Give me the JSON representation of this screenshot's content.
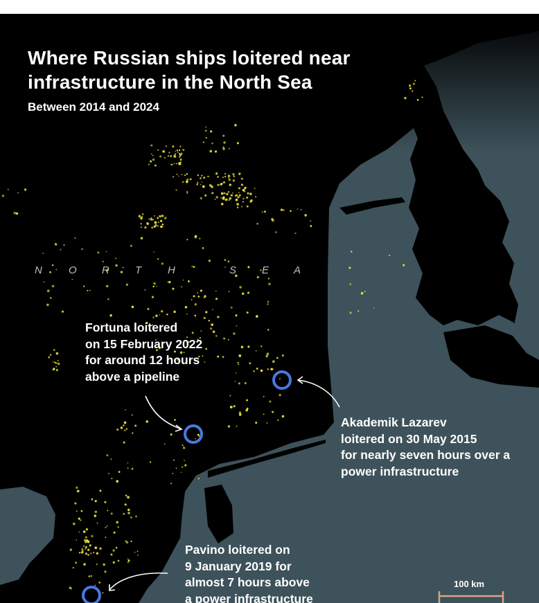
{
  "title": {
    "line1": "Where Russian ships loitered near",
    "line2": "infrastructure in the North Sea"
  },
  "subtitle": "Between 2014 and 2024",
  "sea_label": [
    "N",
    "O",
    "R",
    "T",
    "H",
    "S",
    "E",
    "A"
  ],
  "annotations": [
    {
      "ship": "Fortuna",
      "lines": [
        "Fortuna loitered",
        "on 15 February 2022",
        "for around 12 hours",
        "above a pipeline"
      ]
    },
    {
      "ship": "Akademik Lazarev",
      "lines": [
        "Akademik Lazarev",
        "loitered on 30 May 2015",
        "for nearly seven hours over a",
        "power infrastructure"
      ]
    },
    {
      "ship": "Pavino",
      "lines": [
        "Pavino loitered on",
        "9 January 2019 for",
        "almost 7 hours above",
        "a power infrastructure"
      ]
    }
  ],
  "scale": {
    "label": "100 km"
  },
  "colors": {
    "sea": "#000000",
    "land": "#3d525a",
    "dots": "#e8e23a",
    "highlight_circle": "#4a78e0",
    "scale_bar": "#d9a48a",
    "text": "#ffffff"
  }
}
